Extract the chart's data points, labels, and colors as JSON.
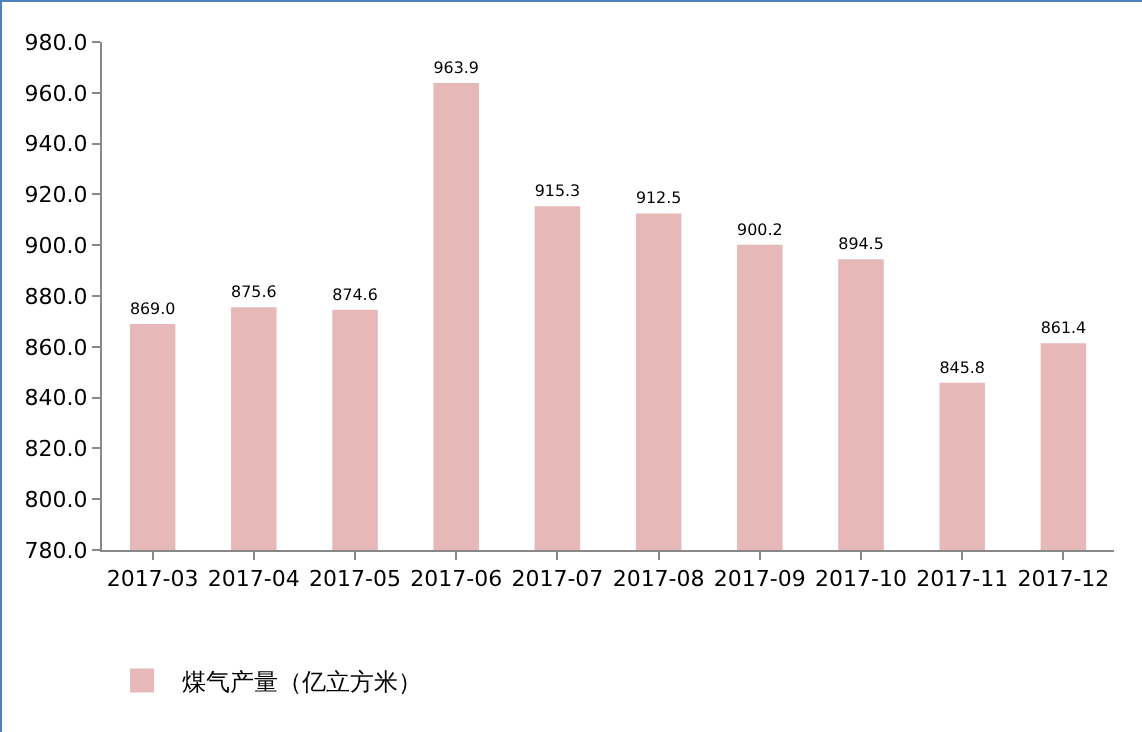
{
  "chart_data": {
    "type": "bar",
    "categories": [
      "2017-03",
      "2017-04",
      "2017-05",
      "2017-06",
      "2017-07",
      "2017-08",
      "2017-09",
      "2017-10",
      "2017-11",
      "2017-12"
    ],
    "series": [
      {
        "name": "煤气产量（亿立方米）",
        "color": "#e6b9b8",
        "values": [
          869.0,
          875.6,
          874.6,
          963.9,
          915.3,
          912.5,
          900.2,
          894.5,
          845.8,
          861.4
        ],
        "value_labels": [
          "869.0",
          "875.6",
          "874.6",
          "963.9",
          "915.3",
          "912.5",
          "900.2",
          "894.5",
          "845.8",
          "861.4"
        ]
      }
    ],
    "ylim": [
      780,
      980
    ],
    "yticks": [
      {
        "value": 780,
        "label": "780.0"
      },
      {
        "value": 800,
        "label": "800.0"
      },
      {
        "value": 820,
        "label": "820.0"
      },
      {
        "value": 840,
        "label": "840.0"
      },
      {
        "value": 860,
        "label": "860.0"
      },
      {
        "value": 880,
        "label": "880.0"
      },
      {
        "value": 900,
        "label": "900.0"
      },
      {
        "value": 920,
        "label": "920.0"
      },
      {
        "value": 940,
        "label": "940.0"
      },
      {
        "value": 960,
        "label": "960.0"
      },
      {
        "value": 980,
        "label": "980.0"
      }
    ],
    "grid": false,
    "legend": "bottom left"
  }
}
